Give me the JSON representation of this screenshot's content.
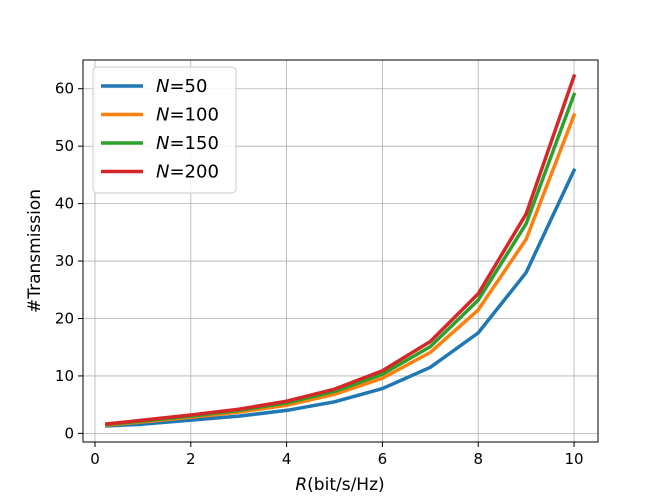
{
  "chart_data": {
    "type": "line",
    "title": "",
    "xlabel_var": "R",
    "xlabel_unit": "(bit/s/Hz)",
    "ylabel": "#Transmission",
    "xlim": [
      -0.25,
      10.5
    ],
    "ylim": [
      -1.5,
      65
    ],
    "xticks": [
      0,
      2,
      4,
      6,
      8,
      10
    ],
    "yticks": [
      0,
      10,
      20,
      30,
      40,
      50,
      60
    ],
    "grid": true,
    "legend_position": "top-left",
    "legend_var": "N",
    "x": [
      0.25,
      1,
      2,
      3,
      4,
      5,
      6,
      7,
      8,
      9,
      10
    ],
    "series": [
      {
        "name": "=50",
        "color": "#1f77b4",
        "values": [
          1.3,
          1.6,
          2.3,
          3.0,
          4.0,
          5.5,
          7.8,
          11.5,
          17.5,
          28.0,
          45.8
        ]
      },
      {
        "name": "=100",
        "color": "#ff7f0e",
        "values": [
          1.45,
          2.0,
          2.8,
          3.7,
          4.9,
          6.8,
          9.6,
          14.1,
          21.5,
          33.8,
          55.4
        ]
      },
      {
        "name": "=150",
        "color": "#2ca02c",
        "values": [
          1.55,
          2.15,
          3.0,
          4.0,
          5.3,
          7.3,
          10.3,
          15.1,
          23.2,
          36.5,
          59.0
        ]
      },
      {
        "name": "=200",
        "color": "#d62728",
        "values": [
          1.65,
          2.3,
          3.2,
          4.2,
          5.6,
          7.7,
          10.9,
          16.0,
          24.3,
          38.2,
          62.2
        ]
      }
    ]
  }
}
